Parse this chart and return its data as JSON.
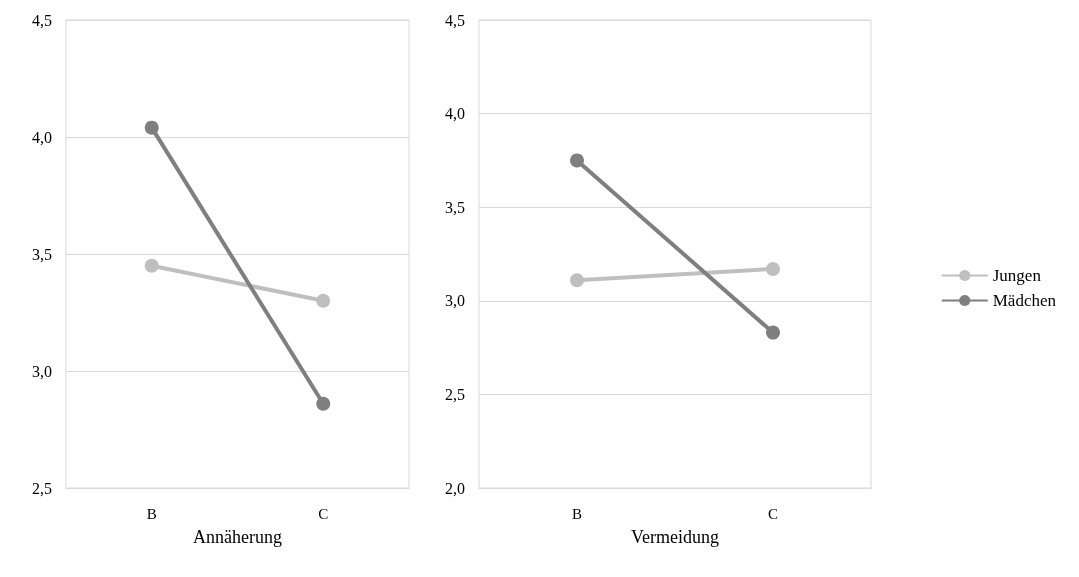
{
  "chart_data": [
    {
      "type": "line",
      "xlabel": "Annäherung",
      "categories": [
        "B",
        "C"
      ],
      "series": [
        {
          "color": "#bfbfbf",
          "values": [
            3.45,
            3.3
          ]
        },
        {
          "color": "#7f7f7f",
          "values": [
            4.04,
            2.86
          ]
        }
      ],
      "ylim": [
        2.5,
        4.5
      ],
      "yticks": [
        {
          "value": 2.5,
          "label": "2,5"
        },
        {
          "value": 3.0,
          "label": "3,0"
        },
        {
          "value": 3.5,
          "label": "3,5"
        },
        {
          "value": 4.0,
          "label": "4,0"
        },
        {
          "value": 4.5,
          "label": "4,5"
        }
      ],
      "grid": "y",
      "legend": false,
      "marker": "circle"
    },
    {
      "type": "line",
      "xlabel": "Vermeidung",
      "categories": [
        "B",
        "C"
      ],
      "series": [
        {
          "name": "Jungen",
          "color": "#bfbfbf",
          "values": [
            3.11,
            3.17
          ]
        },
        {
          "name": "Mädchen",
          "color": "#7f7f7f",
          "values": [
            3.75,
            2.83
          ]
        }
      ],
      "ylim": [
        2.0,
        4.5
      ],
      "yticks": [
        {
          "value": 2.0,
          "label": "2,0"
        },
        {
          "value": 2.5,
          "label": "2,5"
        },
        {
          "value": 3.0,
          "label": "3,0"
        },
        {
          "value": 3.5,
          "label": "3,5"
        },
        {
          "value": 4.0,
          "label": "4,0"
        },
        {
          "value": 4.5,
          "label": "4,5"
        }
      ],
      "grid": "y",
      "legend": "right",
      "marker": "circle"
    }
  ]
}
